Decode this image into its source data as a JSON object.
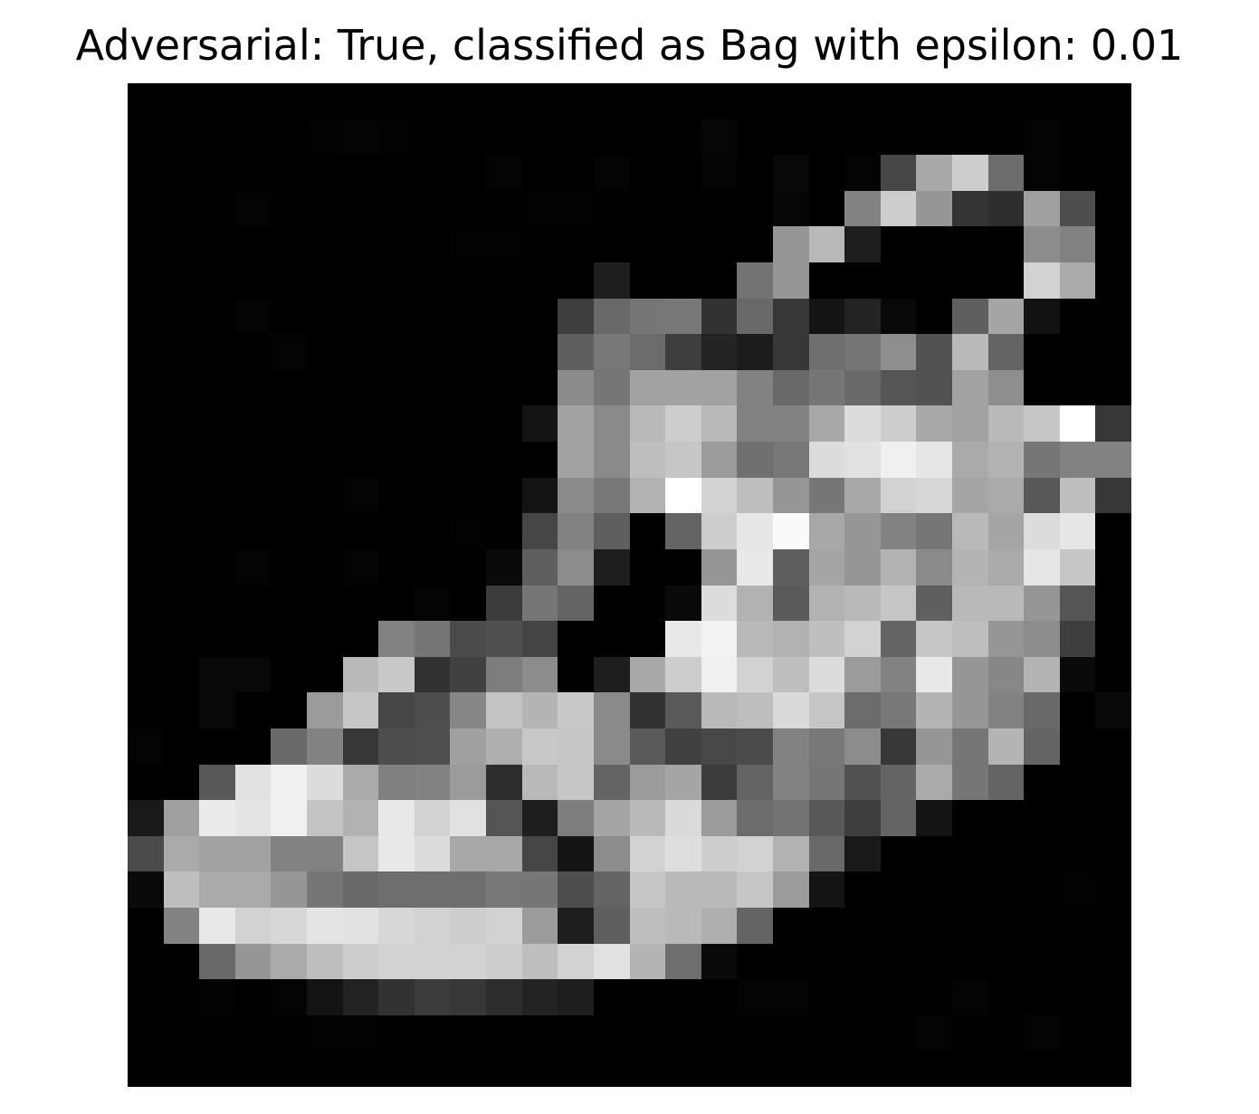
{
  "figure": {
    "title": "Adversarial: True, classified as Bag with epsilon: 0.01"
  },
  "image": {
    "colormap": "gray",
    "rows": 28,
    "cols": 28,
    "pixels": [
      [
        0,
        0,
        0,
        0,
        0,
        0,
        0,
        0,
        0,
        0,
        0,
        0,
        0,
        0,
        0,
        0,
        0,
        0,
        0,
        0,
        0,
        0,
        0,
        0,
        0,
        0,
        0,
        0
      ],
      [
        0,
        0,
        0,
        0,
        0,
        2,
        4,
        2,
        0,
        0,
        0,
        0,
        0,
        0,
        0,
        0,
        6,
        0,
        0,
        0,
        0,
        0,
        0,
        0,
        0,
        4,
        0,
        0
      ],
      [
        0,
        0,
        0,
        0,
        0,
        0,
        0,
        0,
        0,
        0,
        4,
        0,
        0,
        4,
        0,
        0,
        4,
        0,
        8,
        0,
        4,
        70,
        168,
        205,
        108,
        4,
        0,
        0
      ],
      [
        0,
        0,
        0,
        4,
        0,
        0,
        0,
        0,
        0,
        0,
        0,
        2,
        2,
        0,
        0,
        0,
        0,
        0,
        6,
        0,
        130,
        205,
        150,
        52,
        45,
        160,
        78,
        0
      ],
      [
        0,
        0,
        0,
        0,
        0,
        0,
        0,
        0,
        0,
        2,
        2,
        0,
        0,
        0,
        0,
        0,
        0,
        0,
        150,
        185,
        30,
        0,
        0,
        0,
        0,
        140,
        130,
        0
      ],
      [
        0,
        0,
        0,
        0,
        0,
        0,
        0,
        0,
        0,
        0,
        0,
        0,
        0,
        30,
        0,
        0,
        0,
        115,
        150,
        0,
        0,
        0,
        0,
        0,
        0,
        210,
        170,
        0
      ],
      [
        0,
        0,
        0,
        4,
        0,
        0,
        0,
        0,
        0,
        0,
        0,
        0,
        62,
        105,
        118,
        120,
        50,
        105,
        55,
        20,
        35,
        8,
        0,
        95,
        165,
        18,
        0,
        0
      ],
      [
        0,
        0,
        0,
        0,
        4,
        0,
        0,
        0,
        0,
        0,
        0,
        0,
        95,
        120,
        108,
        62,
        35,
        28,
        55,
        112,
        118,
        142,
        82,
        185,
        100,
        0,
        0,
        0
      ],
      [
        0,
        0,
        0,
        0,
        0,
        0,
        0,
        0,
        0,
        0,
        0,
        0,
        138,
        118,
        162,
        162,
        162,
        130,
        105,
        118,
        105,
        85,
        82,
        162,
        142,
        0,
        0,
        0
      ],
      [
        0,
        0,
        0,
        0,
        0,
        0,
        0,
        0,
        0,
        0,
        0,
        20,
        162,
        138,
        185,
        205,
        185,
        130,
        130,
        168,
        220,
        205,
        168,
        162,
        185,
        198,
        255,
        55
      ],
      [
        0,
        0,
        0,
        0,
        0,
        0,
        0,
        0,
        0,
        0,
        0,
        0,
        162,
        138,
        190,
        198,
        155,
        112,
        120,
        220,
        225,
        240,
        230,
        170,
        178,
        118,
        130,
        130
      ],
      [
        0,
        0,
        0,
        0,
        0,
        0,
        4,
        0,
        0,
        0,
        0,
        20,
        138,
        120,
        178,
        255,
        210,
        190,
        150,
        118,
        168,
        210,
        215,
        165,
        170,
        88,
        190,
        55
      ],
      [
        0,
        0,
        0,
        0,
        0,
        0,
        0,
        0,
        0,
        2,
        0,
        70,
        130,
        95,
        0,
        100,
        205,
        230,
        250,
        168,
        150,
        130,
        118,
        185,
        165,
        220,
        230,
        0
      ],
      [
        0,
        0,
        0,
        4,
        0,
        0,
        4,
        0,
        0,
        0,
        10,
        95,
        140,
        30,
        0,
        0,
        150,
        232,
        95,
        165,
        150,
        178,
        138,
        180,
        170,
        230,
        198,
        0
      ],
      [
        0,
        0,
        0,
        0,
        0,
        0,
        0,
        0,
        4,
        0,
        60,
        118,
        100,
        0,
        0,
        10,
        220,
        178,
        90,
        178,
        185,
        198,
        95,
        185,
        185,
        150,
        85,
        0
      ],
      [
        0,
        0,
        0,
        0,
        0,
        0,
        0,
        130,
        118,
        75,
        80,
        68,
        0,
        0,
        0,
        232,
        242,
        185,
        178,
        190,
        210,
        100,
        198,
        190,
        150,
        140,
        62,
        0
      ],
      [
        0,
        0,
        8,
        8,
        0,
        0,
        185,
        200,
        50,
        65,
        125,
        140,
        0,
        30,
        168,
        205,
        240,
        210,
        190,
        220,
        155,
        130,
        232,
        150,
        135,
        180,
        10,
        0
      ],
      [
        0,
        0,
        8,
        0,
        0,
        155,
        198,
        70,
        78,
        135,
        195,
        180,
        200,
        138,
        50,
        90,
        185,
        190,
        218,
        198,
        108,
        120,
        180,
        150,
        130,
        105,
        0,
        8
      ],
      [
        4,
        0,
        0,
        0,
        105,
        130,
        55,
        78,
        80,
        160,
        175,
        200,
        198,
        138,
        90,
        65,
        72,
        75,
        130,
        120,
        140,
        55,
        150,
        118,
        180,
        100,
        0,
        0
      ],
      [
        0,
        0,
        88,
        225,
        240,
        220,
        170,
        128,
        130,
        155,
        45,
        185,
        198,
        100,
        155,
        165,
        60,
        100,
        130,
        118,
        82,
        100,
        170,
        118,
        100,
        0,
        0,
        0
      ],
      [
        25,
        160,
        235,
        228,
        240,
        195,
        178,
        232,
        210,
        225,
        85,
        30,
        125,
        165,
        185,
        218,
        155,
        108,
        115,
        88,
        62,
        100,
        20,
        0,
        0,
        0,
        0,
        0
      ],
      [
        75,
        170,
        162,
        162,
        130,
        130,
        198,
        232,
        220,
        168,
        168,
        70,
        20,
        140,
        210,
        222,
        205,
        210,
        178,
        105,
        25,
        0,
        0,
        0,
        0,
        0,
        0,
        0
      ],
      [
        10,
        190,
        170,
        170,
        150,
        118,
        105,
        110,
        110,
        110,
        120,
        118,
        78,
        100,
        198,
        185,
        185,
        198,
        155,
        20,
        0,
        0,
        0,
        0,
        0,
        0,
        2,
        0
      ],
      [
        0,
        130,
        232,
        210,
        215,
        228,
        225,
        215,
        210,
        205,
        210,
        155,
        30,
        95,
        190,
        185,
        175,
        100,
        0,
        0,
        0,
        0,
        0,
        0,
        0,
        0,
        0,
        0
      ],
      [
        0,
        0,
        105,
        150,
        170,
        190,
        205,
        210,
        210,
        210,
        205,
        190,
        210,
        225,
        180,
        110,
        10,
        0,
        0,
        0,
        0,
        0,
        0,
        0,
        0,
        0,
        0,
        0
      ],
      [
        0,
        0,
        2,
        0,
        4,
        20,
        35,
        50,
        60,
        55,
        45,
        35,
        30,
        0,
        0,
        0,
        0,
        4,
        4,
        0,
        0,
        0,
        0,
        4,
        0,
        0,
        0,
        0
      ],
      [
        0,
        0,
        0,
        0,
        0,
        2,
        2,
        0,
        0,
        0,
        0,
        0,
        0,
        0,
        0,
        0,
        0,
        0,
        0,
        0,
        0,
        0,
        4,
        0,
        0,
        4,
        0,
        0
      ],
      [
        0,
        0,
        0,
        0,
        0,
        0,
        0,
        0,
        0,
        0,
        0,
        0,
        0,
        0,
        0,
        0,
        0,
        0,
        0,
        0,
        0,
        0,
        0,
        0,
        0,
        0,
        0,
        0
      ]
    ]
  }
}
